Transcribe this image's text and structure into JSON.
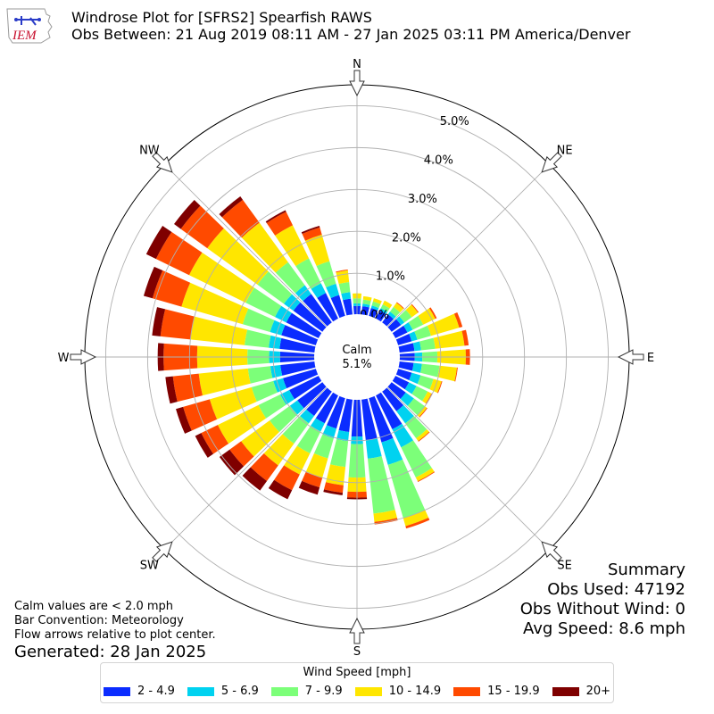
{
  "header": {
    "logo_text": "IEM",
    "title_line1": "Windrose Plot for [SFRS2] Spearfish RAWS",
    "title_line2": "Obs Between: 21 Aug 2019 08:11 AM - 27 Jan 2025 03:11 PM America/Denver"
  },
  "summary": {
    "heading": "Summary",
    "obs_used": "Obs Used: 47192",
    "obs_without_wind": "Obs Without Wind: 0",
    "avg_speed": "Avg Speed: 8.6 mph"
  },
  "notes": {
    "calm_note": "Calm values are < 2.0 mph",
    "bar_convention": "Bar Convention: Meteorology",
    "flow_arrows": "Flow arrows relative to plot center.",
    "generated": "Generated: 28 Jan 2025"
  },
  "chart_data": {
    "type": "windrose",
    "calm_label": "Calm",
    "calm_percent": "5.1%",
    "radial_unit": "percent",
    "radial_offset": 1.0,
    "radial_max": 5.5,
    "radial_ticks": [
      0.0,
      1.0,
      2.0,
      3.0,
      4.0,
      5.0
    ],
    "radial_tick_labels": [
      "0.0%",
      "1.0%",
      "2.0%",
      "3.0%",
      "4.0%",
      "5.0%"
    ],
    "cardinal_labels": [
      {
        "label": "N",
        "angle": 0
      },
      {
        "label": "NE",
        "angle": 45
      },
      {
        "label": "E",
        "angle": 90
      },
      {
        "label": "SE",
        "angle": 135
      },
      {
        "label": "S",
        "angle": 180
      },
      {
        "label": "SW",
        "angle": 225
      },
      {
        "label": "W",
        "angle": 270
      },
      {
        "label": "NW",
        "angle": 315
      }
    ],
    "legend_title": "Wind Speed [mph]",
    "bins": [
      {
        "label": "2 - 4.9",
        "color": "#0b2cff"
      },
      {
        "label": "5 - 6.9",
        "color": "#00d2f0"
      },
      {
        "label": "7 - 9.9",
        "color": "#7cff79"
      },
      {
        "label": "10 - 14.9",
        "color": "#ffe600"
      },
      {
        "label": "15 - 19.9",
        "color": "#ff4a00"
      },
      {
        "label": "20+",
        "color": "#7f0000"
      }
    ],
    "directions_deg": [
      0,
      10,
      20,
      30,
      40,
      50,
      60,
      70,
      80,
      90,
      100,
      110,
      120,
      130,
      140,
      150,
      160,
      170,
      180,
      190,
      200,
      210,
      220,
      230,
      240,
      250,
      260,
      270,
      280,
      290,
      300,
      310,
      320,
      330,
      340,
      350
    ],
    "cumulative_percent": [
      [
        0.22,
        0.28,
        0.4,
        0.52,
        0.52,
        0.52
      ],
      [
        0.22,
        0.28,
        0.38,
        0.46,
        0.46,
        0.46
      ],
      [
        0.22,
        0.28,
        0.38,
        0.46,
        0.46,
        0.46
      ],
      [
        0.24,
        0.3,
        0.4,
        0.5,
        0.5,
        0.5
      ],
      [
        0.26,
        0.34,
        0.48,
        0.6,
        0.62,
        0.62
      ],
      [
        0.3,
        0.4,
        0.62,
        0.8,
        0.82,
        0.82
      ],
      [
        0.34,
        0.48,
        0.76,
        1.08,
        1.12,
        1.12
      ],
      [
        0.36,
        0.5,
        0.84,
        1.54,
        1.62,
        1.62
      ],
      [
        0.38,
        0.54,
        0.88,
        1.58,
        1.68,
        1.68
      ],
      [
        0.38,
        0.56,
        0.92,
        1.6,
        1.7,
        1.7
      ],
      [
        0.36,
        0.56,
        0.98,
        1.4,
        1.42,
        1.42
      ],
      [
        0.36,
        0.58,
        0.9,
        1.1,
        1.12,
        1.12
      ],
      [
        0.38,
        0.58,
        0.88,
        0.98,
        1.0,
        1.0
      ],
      [
        0.44,
        0.68,
        1.0,
        1.06,
        1.08,
        1.08
      ],
      [
        0.6,
        0.96,
        1.4,
        1.48,
        1.5,
        1.5
      ],
      [
        0.92,
        1.4,
        2.2,
        2.3,
        2.32,
        2.32
      ],
      [
        1.12,
        1.68,
        3.0,
        3.2,
        3.26,
        3.26
      ],
      [
        1.0,
        1.44,
        2.76,
        2.96,
        3.02,
        3.02
      ],
      [
        0.9,
        1.08,
        1.88,
        2.22,
        2.36,
        2.4
      ],
      [
        0.8,
        1.02,
        1.64,
        2.08,
        2.26,
        2.32
      ],
      [
        0.78,
        1.02,
        1.52,
        2.0,
        2.24,
        2.42
      ],
      [
        0.76,
        0.98,
        1.56,
        2.12,
        2.54,
        2.78
      ],
      [
        0.74,
        0.96,
        1.56,
        2.2,
        2.66,
        2.94
      ],
      [
        0.76,
        0.98,
        1.58,
        2.42,
        2.76,
        3.06
      ],
      [
        0.8,
        1.04,
        1.62,
        2.7,
        3.14,
        3.3
      ],
      [
        0.84,
        1.08,
        1.62,
        2.66,
        3.32,
        3.5
      ],
      [
        0.84,
        1.08,
        1.62,
        2.8,
        3.42,
        3.6
      ],
      [
        0.84,
        1.1,
        1.62,
        2.82,
        3.62,
        3.76
      ],
      [
        0.86,
        1.12,
        1.7,
        3.0,
        3.72,
        3.92
      ],
      [
        0.88,
        1.16,
        1.84,
        3.36,
        4.08,
        4.3
      ],
      [
        0.88,
        1.18,
        1.96,
        3.46,
        4.34,
        4.6
      ],
      [
        0.88,
        1.16,
        1.94,
        3.42,
        4.2,
        4.4
      ],
      [
        0.86,
        1.12,
        1.8,
        2.96,
        3.64,
        3.74
      ],
      [
        0.7,
        0.96,
        1.62,
        2.5,
        2.86,
        2.9
      ],
      [
        0.54,
        0.82,
        1.38,
        2.04,
        2.22,
        2.26
      ],
      [
        0.4,
        0.56,
        0.8,
        1.08,
        1.1,
        1.1
      ]
    ]
  }
}
